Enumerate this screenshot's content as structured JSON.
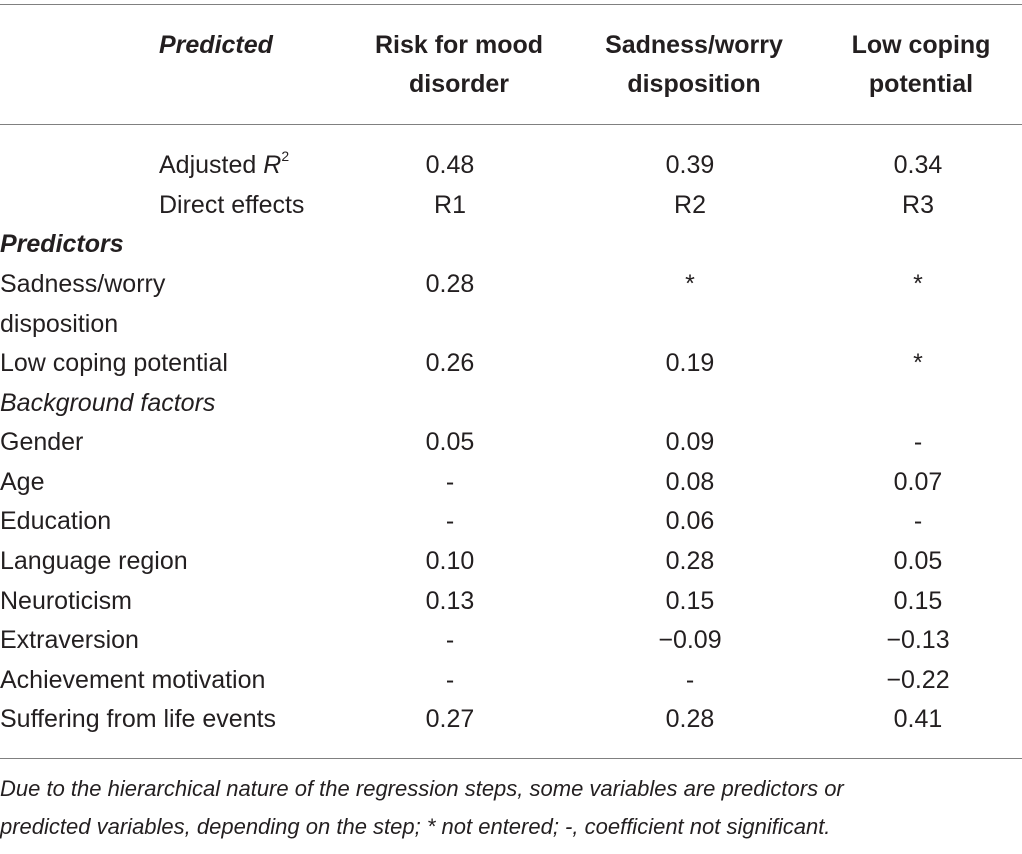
{
  "header": {
    "predicted": "Predicted",
    "col1": [
      "Risk for mood",
      "disorder"
    ],
    "col2": [
      "Sadness/worry",
      "disposition"
    ],
    "col3": [
      "Low coping",
      "potential"
    ]
  },
  "adjusted": {
    "label": "Adjusted ",
    "r": "R",
    "sup": "2",
    "values": [
      "0.48",
      "0.39",
      "0.34"
    ]
  },
  "direct": {
    "label": "Direct effects",
    "values": [
      "R1",
      "R2",
      "R3"
    ]
  },
  "predictors_heading": "Predictors",
  "background_heading": "Background factors",
  "rows": [
    {
      "label": [
        "Sadness/worry",
        "disposition"
      ],
      "values": [
        "0.28",
        "*",
        "*"
      ]
    },
    {
      "label": "Low coping potential",
      "values": [
        "0.26",
        "0.19",
        "*"
      ]
    },
    {
      "label": "Gender",
      "values": [
        "0.05",
        "0.09",
        "-"
      ]
    },
    {
      "label": "Age",
      "values": [
        "-",
        "0.08",
        "0.07"
      ]
    },
    {
      "label": "Education",
      "values": [
        "-",
        "0.06",
        "-"
      ]
    },
    {
      "label": "Language region",
      "values": [
        "0.10",
        "0.28",
        "0.05"
      ]
    },
    {
      "label": "Neuroticism",
      "values": [
        "0.13",
        "0.15",
        "0.15"
      ]
    },
    {
      "label": "Extraversion",
      "values": [
        "-",
        "−0.09",
        "−0.13"
      ]
    },
    {
      "label": "Achievement motivation",
      "values": [
        "-",
        "-",
        "−0.22"
      ]
    },
    {
      "label": "Suffering from life events",
      "values": [
        "0.27",
        "0.28",
        "0.41"
      ]
    }
  ],
  "footnote": [
    "Due to the hierarchical nature of the regression steps, some variables are predictors or",
    "predicted variables, depending on the step; * not entered; -, coefficient not significant."
  ]
}
